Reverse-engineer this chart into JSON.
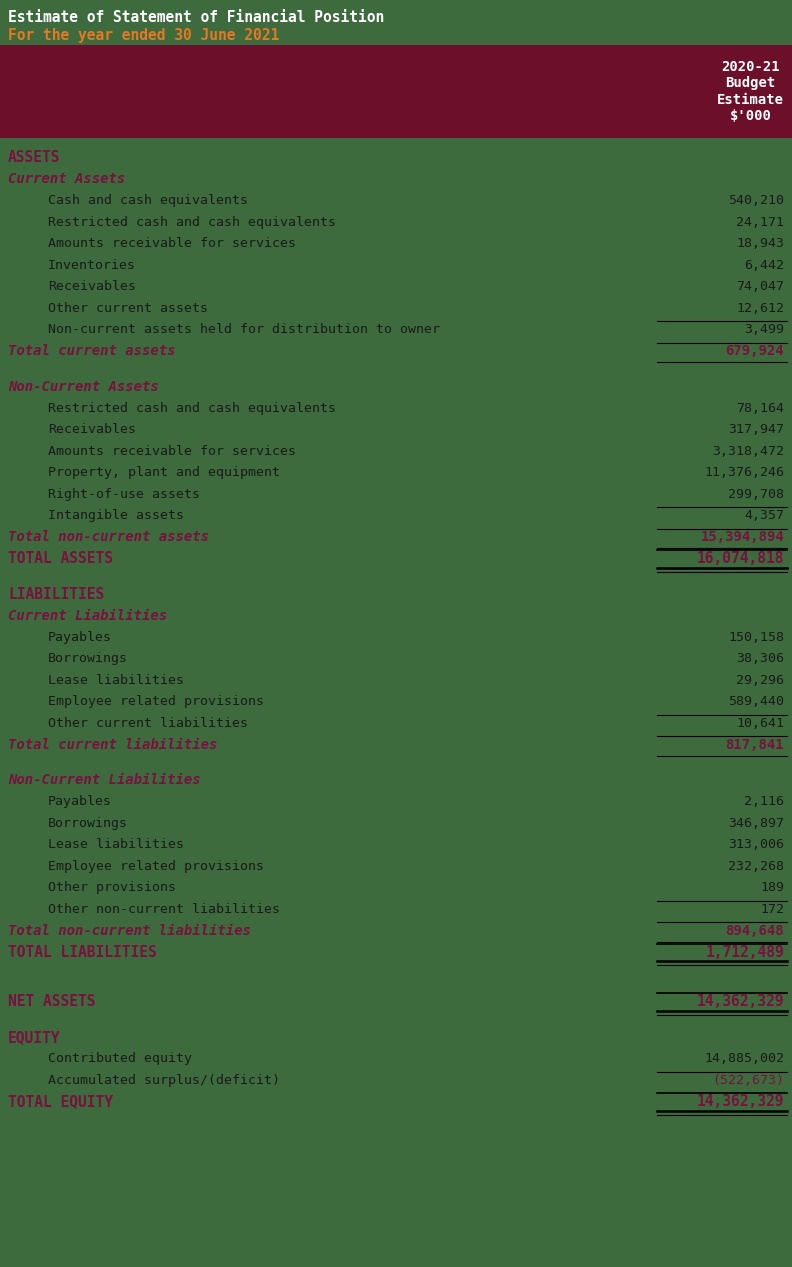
{
  "title1": "Estimate of Statement of Financial Position",
  "title2": "For the year ended 30 June 2021",
  "header_bg": "#6b0f2b",
  "header_text": "2020-21\nBudget\nEstimate\n$'000",
  "bg_color": "#3d6b3d",
  "title1_color": "#ffffff",
  "title2_color": "#e87722",
  "dark_red": "#7b1040",
  "text_color": "#1a1a1a",
  "value_color": "#2a2a2a",
  "rows": [
    {
      "label": "ASSETS",
      "value": "",
      "style": "section",
      "indent": 0
    },
    {
      "label": "Current Assets",
      "value": "",
      "style": "subsection",
      "indent": 0
    },
    {
      "label": "Cash and cash equivalents",
      "value": "540,210",
      "style": "item",
      "indent": 1
    },
    {
      "label": "Restricted cash and cash equivalents",
      "value": "24,171",
      "style": "item",
      "indent": 1
    },
    {
      "label": "Amounts receivable for services",
      "value": "18,943",
      "style": "item",
      "indent": 1
    },
    {
      "label": "Inventories",
      "value": "6,442",
      "style": "item",
      "indent": 1
    },
    {
      "label": "Receivables",
      "value": "74,047",
      "style": "item",
      "indent": 1
    },
    {
      "label": "Other current assets",
      "value": "12,612",
      "style": "item",
      "indent": 1
    },
    {
      "label": "Non-current assets held for distribution to owner",
      "value": "3,499",
      "style": "item_line",
      "indent": 1
    },
    {
      "label": "Total current assets",
      "value": "679,924",
      "style": "total",
      "indent": 0
    },
    {
      "label": "",
      "value": "",
      "style": "spacer",
      "indent": 0
    },
    {
      "label": "Non-Current Assets",
      "value": "",
      "style": "subsection",
      "indent": 0
    },
    {
      "label": "Restricted cash and cash equivalents",
      "value": "78,164",
      "style": "item",
      "indent": 1
    },
    {
      "label": "Receivables",
      "value": "317,947",
      "style": "item",
      "indent": 1
    },
    {
      "label": "Amounts receivable for services",
      "value": "3,318,472",
      "style": "item",
      "indent": 1
    },
    {
      "label": "Property, plant and equipment",
      "value": "11,376,246",
      "style": "item",
      "indent": 1
    },
    {
      "label": "Right-of-use assets",
      "value": "299,708",
      "style": "item",
      "indent": 1
    },
    {
      "label": "Intangible assets",
      "value": "4,357",
      "style": "item_line",
      "indent": 1
    },
    {
      "label": "Total non-current assets",
      "value": "15,394,894",
      "style": "total",
      "indent": 0
    },
    {
      "label": "TOTAL ASSETS",
      "value": "16,074,818",
      "style": "grand_total",
      "indent": 0
    },
    {
      "label": "",
      "value": "",
      "style": "spacer",
      "indent": 0
    },
    {
      "label": "LIABILITIES",
      "value": "",
      "style": "section",
      "indent": 0
    },
    {
      "label": "Current Liabilities",
      "value": "",
      "style": "subsection",
      "indent": 0
    },
    {
      "label": "Payables",
      "value": "150,158",
      "style": "item",
      "indent": 1
    },
    {
      "label": "Borrowings",
      "value": "38,306",
      "style": "item",
      "indent": 1
    },
    {
      "label": "Lease liabilities",
      "value": "29,296",
      "style": "item",
      "indent": 1
    },
    {
      "label": "Employee related provisions",
      "value": "589,440",
      "style": "item",
      "indent": 1
    },
    {
      "label": "Other current liabilities",
      "value": "10,641",
      "style": "item_line",
      "indent": 1
    },
    {
      "label": "Total current liabilities",
      "value": "817,841",
      "style": "total",
      "indent": 0
    },
    {
      "label": "",
      "value": "",
      "style": "spacer",
      "indent": 0
    },
    {
      "label": "Non-Current Liabilities",
      "value": "",
      "style": "subsection",
      "indent": 0
    },
    {
      "label": "Payables",
      "value": "2,116",
      "style": "item",
      "indent": 1
    },
    {
      "label": "Borrowings",
      "value": "346,897",
      "style": "item",
      "indent": 1
    },
    {
      "label": "Lease liabilities",
      "value": "313,006",
      "style": "item",
      "indent": 1
    },
    {
      "label": "Employee related provisions",
      "value": "232,268",
      "style": "item",
      "indent": 1
    },
    {
      "label": "Other provisions",
      "value": "189",
      "style": "item",
      "indent": 1
    },
    {
      "label": "Other non-current liabilities",
      "value": "172",
      "style": "item_line",
      "indent": 1
    },
    {
      "label": "Total non-current liabilities",
      "value": "894,648",
      "style": "total",
      "indent": 0
    },
    {
      "label": "TOTAL LIABILITIES",
      "value": "1,712,489",
      "style": "grand_total",
      "indent": 0
    },
    {
      "label": "",
      "value": "",
      "style": "spacer2",
      "indent": 0
    },
    {
      "label": "NET ASSETS",
      "value": "14,362,329",
      "style": "net_assets",
      "indent": 0
    },
    {
      "label": "",
      "value": "",
      "style": "spacer",
      "indent": 0
    },
    {
      "label": "EQUITY",
      "value": "",
      "style": "section",
      "indent": 0
    },
    {
      "label": "Contributed equity",
      "value": "14,885,002",
      "style": "item",
      "indent": 1
    },
    {
      "label": "Accumulated surplus/(deficit)",
      "value": "(522,673)",
      "style": "item_line_red",
      "indent": 1
    },
    {
      "label": "TOTAL EQUITY",
      "value": "14,362,329",
      "style": "grand_total",
      "indent": 0
    }
  ]
}
